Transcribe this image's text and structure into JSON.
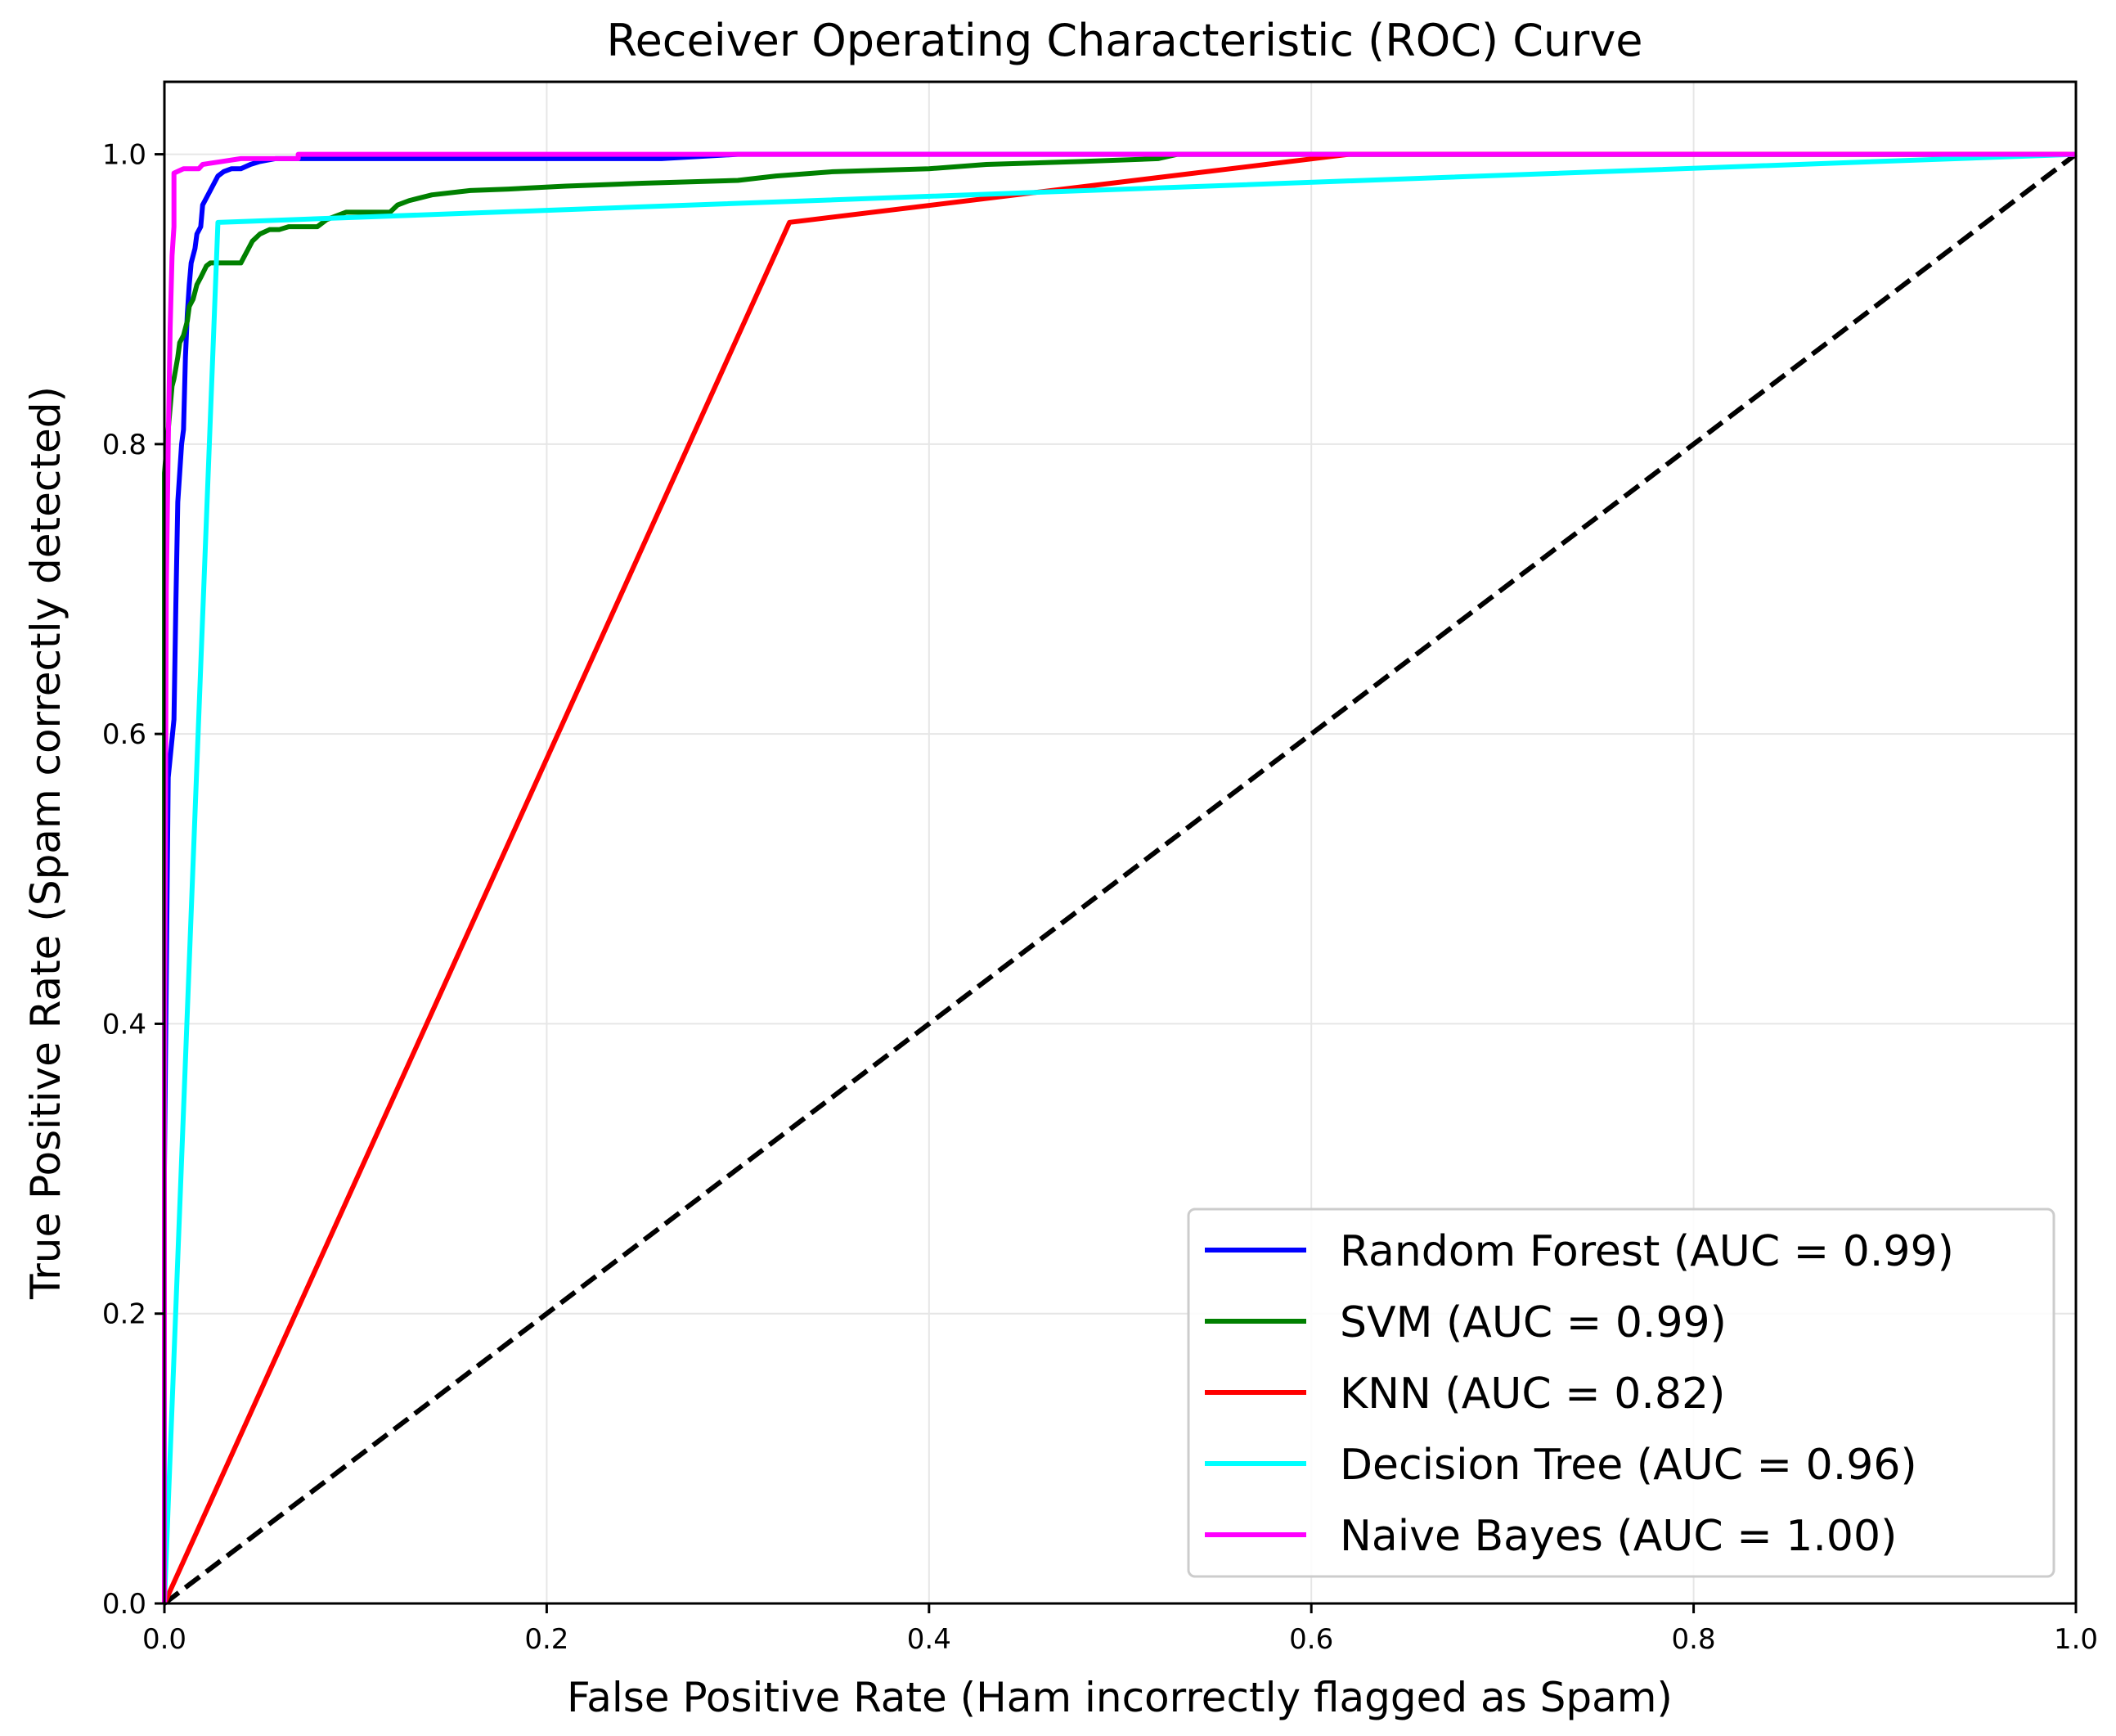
{
  "chart_data": {
    "type": "line",
    "title": "Receiver Operating Characteristic (ROC) Curve",
    "xlabel": "False Positive Rate (Ham incorrectly flagged as Spam)",
    "ylabel": "True Positive Rate (Spam correctly detected)",
    "xlim": [
      0.0,
      1.0
    ],
    "ylim": [
      0.0,
      1.05
    ],
    "xticks": [
      0.0,
      0.2,
      0.4,
      0.6,
      0.8,
      1.0
    ],
    "xtick_labels": [
      "0.0",
      "0.2",
      "0.4",
      "0.6",
      "0.8",
      "1.0"
    ],
    "yticks": [
      0.0,
      0.2,
      0.4,
      0.6,
      0.8,
      1.0
    ],
    "ytick_labels": [
      "0.0",
      "0.2",
      "0.4",
      "0.6",
      "0.8",
      "1.0"
    ],
    "grid": true,
    "legend_position": "lower-right",
    "series": [
      {
        "name": "Random Forest (AUC = 0.99)",
        "color": "#0000ff",
        "x": [
          0.0,
          0.0,
          0.002,
          0.005,
          0.006,
          0.007,
          0.008,
          0.009,
          0.01,
          0.011,
          0.012,
          0.013,
          0.014,
          0.016,
          0.017,
          0.019,
          0.02,
          0.022,
          0.024,
          0.026,
          0.028,
          0.031,
          0.035,
          0.04,
          0.045,
          0.05,
          0.058,
          0.07,
          0.1,
          0.2,
          0.26,
          0.3,
          0.5,
          1.0
        ],
        "y": [
          0.0,
          0.3,
          0.57,
          0.61,
          0.69,
          0.76,
          0.78,
          0.8,
          0.81,
          0.86,
          0.89,
          0.91,
          0.925,
          0.935,
          0.945,
          0.95,
          0.965,
          0.97,
          0.975,
          0.98,
          0.985,
          0.988,
          0.99,
          0.99,
          0.993,
          0.995,
          0.997,
          0.997,
          0.997,
          0.997,
          0.997,
          1.0,
          1.0,
          1.0
        ]
      },
      {
        "name": "SVM (AUC = 0.99)",
        "color": "#008000",
        "x": [
          0.0,
          0.0,
          0.002,
          0.004,
          0.005,
          0.007,
          0.008,
          0.01,
          0.012,
          0.013,
          0.015,
          0.017,
          0.019,
          0.022,
          0.024,
          0.025,
          0.03,
          0.04,
          0.042,
          0.044,
          0.046,
          0.05,
          0.055,
          0.06,
          0.065,
          0.08,
          0.085,
          0.095,
          0.118,
          0.122,
          0.128,
          0.14,
          0.16,
          0.18,
          0.21,
          0.25,
          0.3,
          0.32,
          0.35,
          0.4,
          0.43,
          0.48,
          0.52,
          0.53,
          1.0
        ],
        "y": [
          0.0,
          0.78,
          0.81,
          0.84,
          0.845,
          0.86,
          0.87,
          0.875,
          0.885,
          0.895,
          0.9,
          0.91,
          0.915,
          0.923,
          0.925,
          0.925,
          0.925,
          0.925,
          0.93,
          0.935,
          0.94,
          0.945,
          0.948,
          0.948,
          0.95,
          0.95,
          0.955,
          0.96,
          0.96,
          0.965,
          0.968,
          0.972,
          0.975,
          0.976,
          0.978,
          0.98,
          0.982,
          0.985,
          0.988,
          0.99,
          0.993,
          0.995,
          0.997,
          1.0,
          1.0
        ]
      },
      {
        "name": "KNN (AUC = 0.82)",
        "color": "#ff0000",
        "x": [
          0.0,
          0.327,
          0.62,
          1.0
        ],
        "y": [
          0.0,
          0.953,
          1.0,
          1.0
        ]
      },
      {
        "name": "Decision Tree (AUC = 0.96)",
        "color": "#00ffff",
        "x": [
          0.0,
          0.028,
          1.0
        ],
        "y": [
          0.0,
          0.953,
          1.0
        ]
      },
      {
        "name": "Naive Bayes (AUC = 1.00)",
        "color": "#ff00ff",
        "x": [
          0.0,
          0.0,
          0.001,
          0.002,
          0.003,
          0.004,
          0.005,
          0.005,
          0.01,
          0.018,
          0.02,
          0.03,
          0.04,
          0.05,
          0.07,
          0.07,
          1.0
        ],
        "y": [
          0.0,
          0.35,
          0.7,
          0.8,
          0.88,
          0.93,
          0.95,
          0.987,
          0.99,
          0.99,
          0.993,
          0.995,
          0.997,
          0.997,
          0.997,
          1.0,
          1.0
        ]
      }
    ],
    "reference_line": {
      "color": "#000000",
      "style": "dashed",
      "x": [
        0.0,
        1.0
      ],
      "y": [
        0.0,
        1.0
      ]
    }
  }
}
